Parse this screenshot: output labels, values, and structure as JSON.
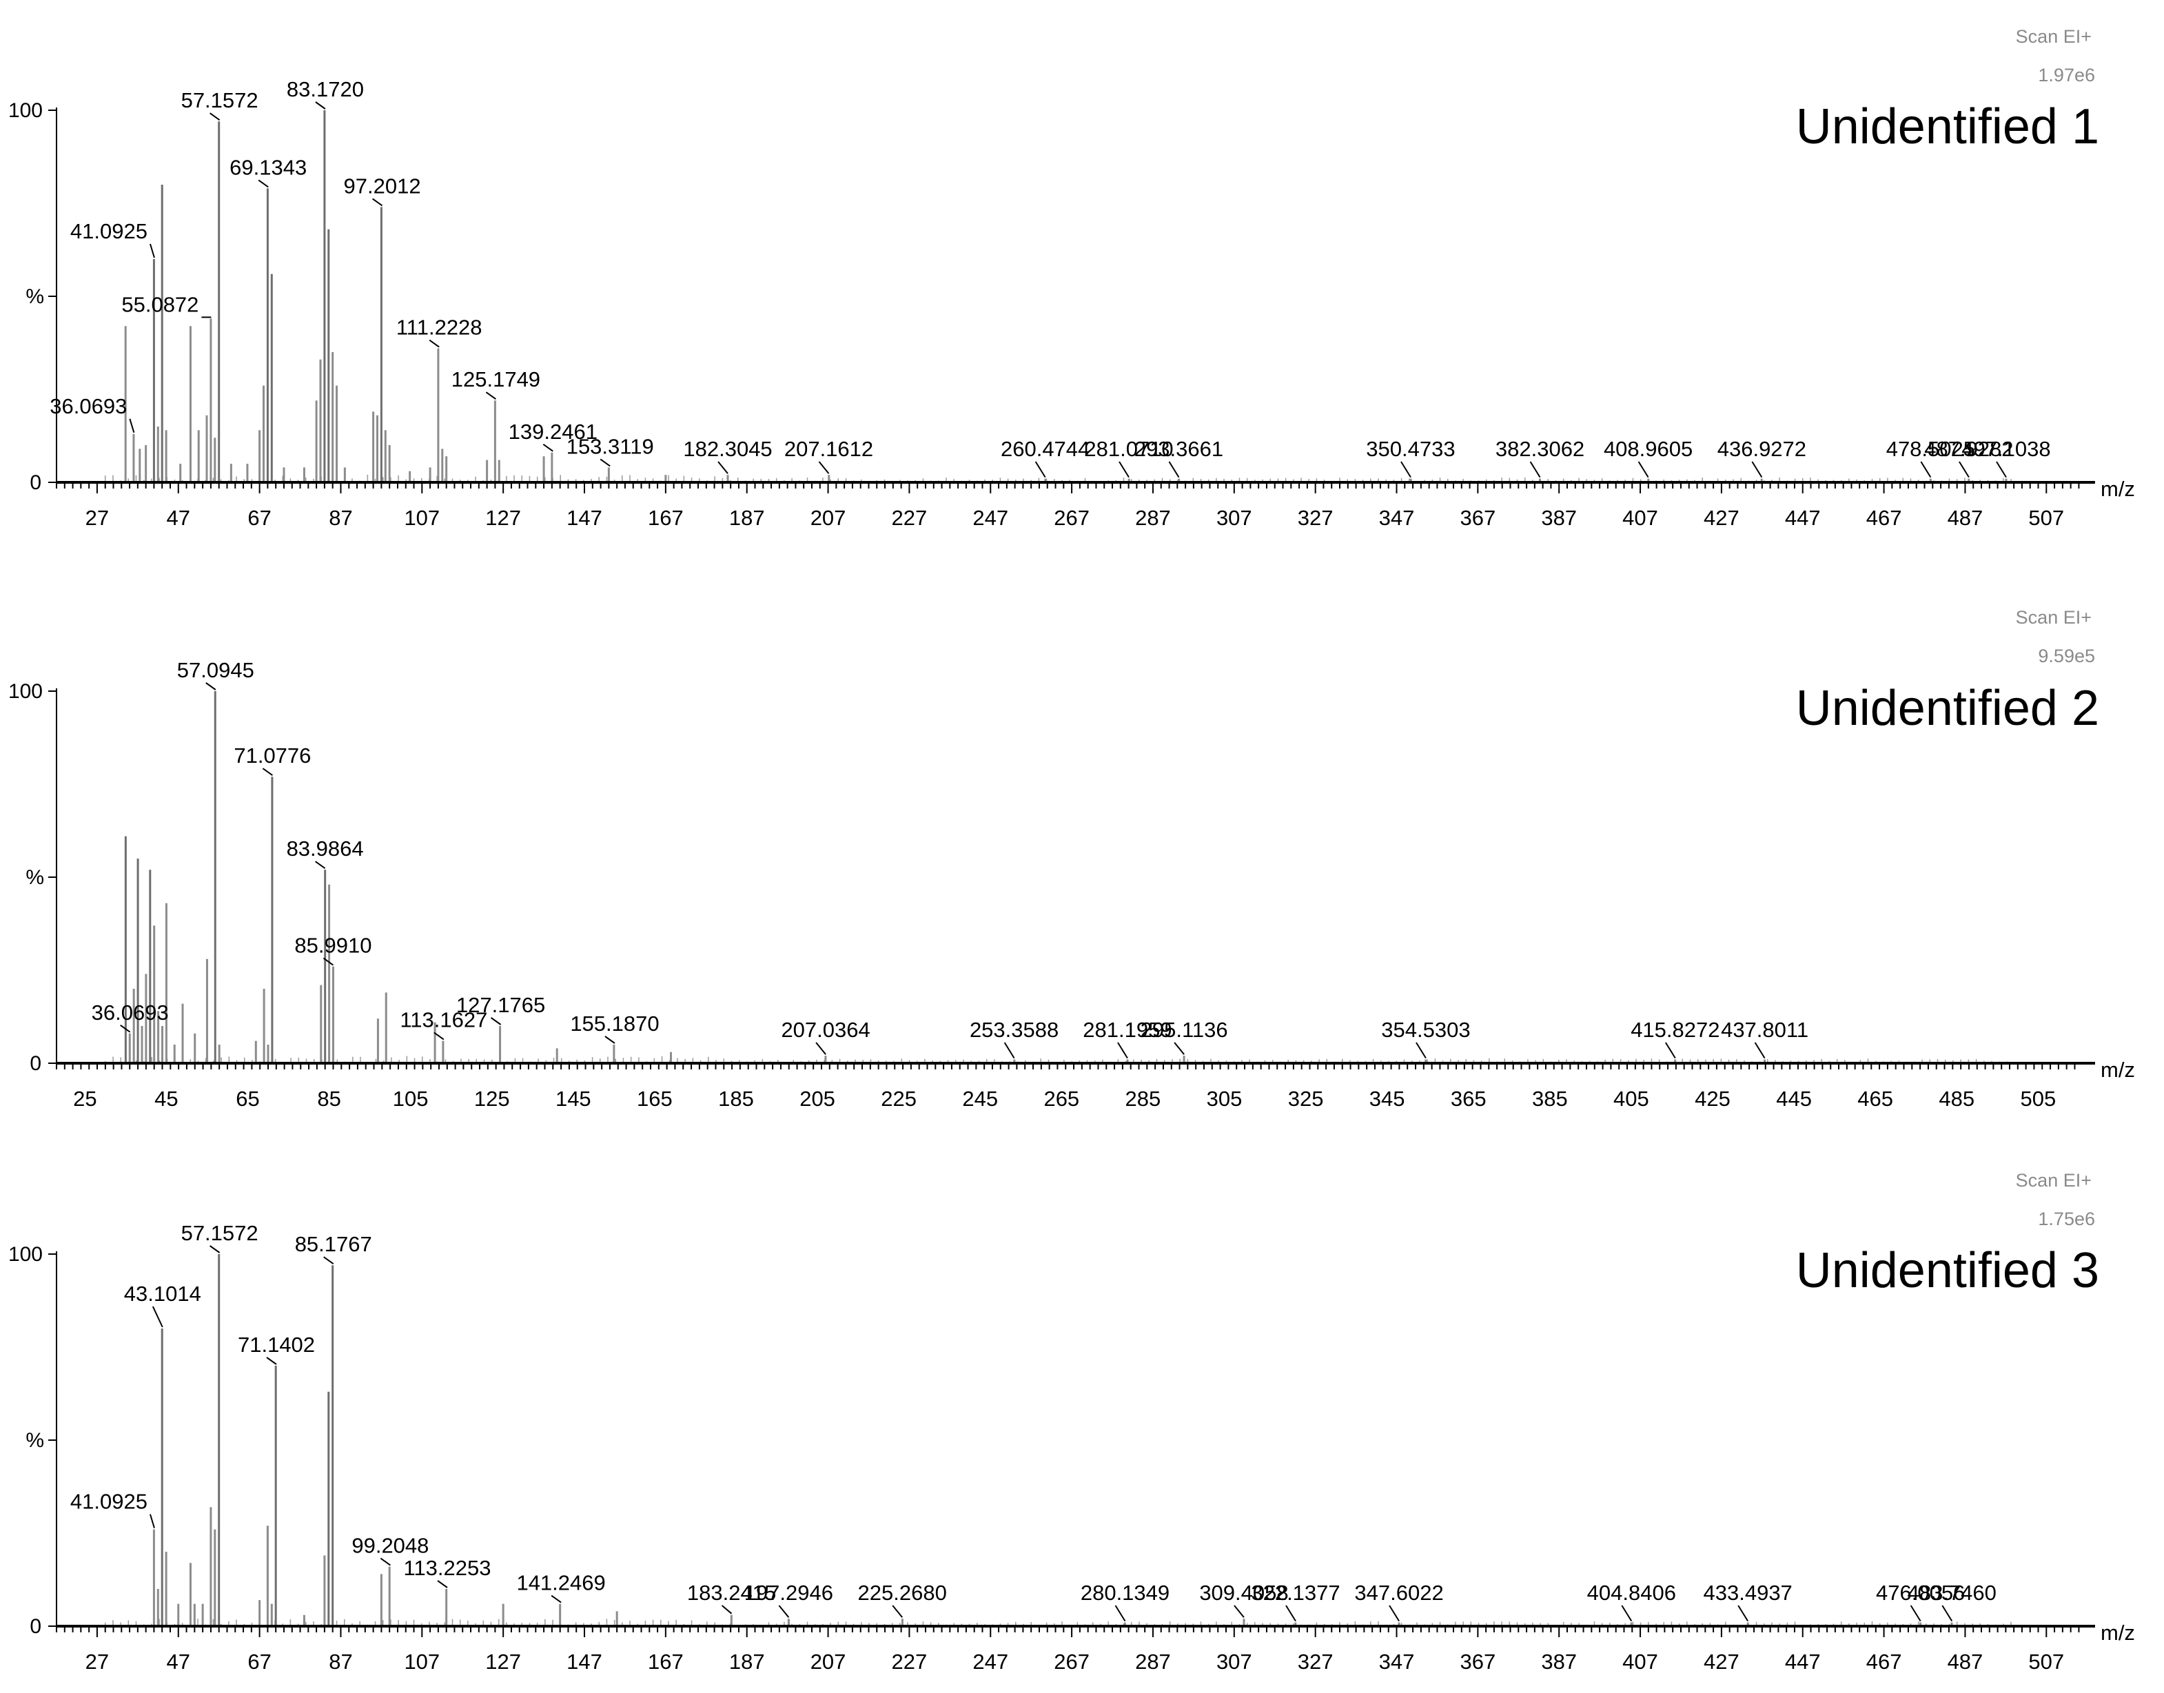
{
  "chart_data": [
    {
      "type": "bar",
      "title": "Unidentified 1",
      "scan_mode": "Scan EI+",
      "intensity": "1.97e6",
      "xlabel": "m/z",
      "ylabel": "%",
      "y_tick_labels": [
        "100",
        "%",
        "0"
      ],
      "ylim": [
        0,
        100
      ],
      "xlim": [
        17,
        519
      ],
      "x_ticks": [
        27,
        47,
        67,
        87,
        107,
        127,
        147,
        167,
        187,
        207,
        227,
        247,
        267,
        287,
        307,
        327,
        347,
        367,
        387,
        407,
        427,
        447,
        467,
        487,
        507
      ],
      "peaks": [
        {
          "mz": 34,
          "value": 42
        },
        {
          "mz": 36,
          "value": 13
        },
        {
          "mz": 37.5,
          "value": 9
        },
        {
          "mz": 39,
          "value": 10
        },
        {
          "mz": 41,
          "value": 60
        },
        {
          "mz": 42,
          "value": 15
        },
        {
          "mz": 43,
          "value": 80
        },
        {
          "mz": 44,
          "value": 14
        },
        {
          "mz": 47.5,
          "value": 5
        },
        {
          "mz": 50,
          "value": 42
        },
        {
          "mz": 52,
          "value": 14
        },
        {
          "mz": 54,
          "value": 18
        },
        {
          "mz": 55,
          "value": 44
        },
        {
          "mz": 56,
          "value": 12
        },
        {
          "mz": 57,
          "value": 97
        },
        {
          "mz": 60,
          "value": 5
        },
        {
          "mz": 64,
          "value": 5
        },
        {
          "mz": 67,
          "value": 14
        },
        {
          "mz": 68,
          "value": 26
        },
        {
          "mz": 69,
          "value": 79
        },
        {
          "mz": 70,
          "value": 56
        },
        {
          "mz": 73,
          "value": 4
        },
        {
          "mz": 78,
          "value": 4
        },
        {
          "mz": 81,
          "value": 22
        },
        {
          "mz": 82,
          "value": 33
        },
        {
          "mz": 83,
          "value": 100
        },
        {
          "mz": 84,
          "value": 68
        },
        {
          "mz": 85,
          "value": 35
        },
        {
          "mz": 86,
          "value": 26
        },
        {
          "mz": 88,
          "value": 4
        },
        {
          "mz": 95,
          "value": 19
        },
        {
          "mz": 96,
          "value": 18
        },
        {
          "mz": 97,
          "value": 74
        },
        {
          "mz": 98,
          "value": 14
        },
        {
          "mz": 99,
          "value": 10
        },
        {
          "mz": 104,
          "value": 3
        },
        {
          "mz": 109,
          "value": 4
        },
        {
          "mz": 111,
          "value": 36
        },
        {
          "mz": 112,
          "value": 9
        },
        {
          "mz": 113,
          "value": 7
        },
        {
          "mz": 123,
          "value": 6
        },
        {
          "mz": 125,
          "value": 22
        },
        {
          "mz": 126,
          "value": 6
        },
        {
          "mz": 137,
          "value": 7
        },
        {
          "mz": 139,
          "value": 8
        },
        {
          "mz": 153,
          "value": 4
        },
        {
          "mz": 167,
          "value": 2
        },
        {
          "mz": 182.3,
          "value": 2
        },
        {
          "mz": 207.2,
          "value": 2
        },
        {
          "mz": 260.5,
          "value": 1
        },
        {
          "mz": 281.1,
          "value": 1
        },
        {
          "mz": 293.4,
          "value": 1
        },
        {
          "mz": 350.5,
          "value": 1
        },
        {
          "mz": 382.3,
          "value": 1
        },
        {
          "mz": 409,
          "value": 1
        },
        {
          "mz": 436.9,
          "value": 1
        },
        {
          "mz": 478.5,
          "value": 1
        },
        {
          "mz": 487.9,
          "value": 1
        },
        {
          "mz": 497.1,
          "value": 1
        }
      ],
      "annotations": [
        {
          "label": "36.0693",
          "mz": 36.0693
        },
        {
          "label": "41.0925",
          "mz": 41.0925
        },
        {
          "label": "55.0872",
          "mz": 55.0872
        },
        {
          "label": "57.1572",
          "mz": 57.1572
        },
        {
          "label": "69.1343",
          "mz": 69.1343
        },
        {
          "label": "83.1720",
          "mz": 83.172
        },
        {
          "label": "97.2012",
          "mz": 97.2012
        },
        {
          "label": "111.2228",
          "mz": 111.2228
        },
        {
          "label": "125.1749",
          "mz": 125.1749
        },
        {
          "label": "139.2461",
          "mz": 139.2461
        },
        {
          "label": "153.3119",
          "mz": 153.3119
        },
        {
          "label": "182.3045",
          "mz": 182.3045
        },
        {
          "label": "207.1612",
          "mz": 207.1612
        },
        {
          "label": "260.4744",
          "mz": 260.4744
        },
        {
          "label": "281.0710",
          "mz": 281.071
        },
        {
          "label": "293.3661",
          "mz": 293.3661
        },
        {
          "label": "350.4733",
          "mz": 350.4733
        },
        {
          "label": "382.3062",
          "mz": 382.3062
        },
        {
          "label": "408.9605",
          "mz": 408.9605
        },
        {
          "label": "436.9272",
          "mz": 436.9272
        },
        {
          "label": "478.5025",
          "mz": 478.5025
        },
        {
          "label": "487.9282",
          "mz": 487.9282
        },
        {
          "label": "497.1038",
          "mz": 497.1038
        }
      ]
    },
    {
      "type": "bar",
      "title": "Unidentified 2",
      "scan_mode": "Scan EI+",
      "intensity": "9.59e5",
      "xlabel": "m/z",
      "ylabel": "%",
      "y_tick_labels": [
        "100",
        "%",
        "0"
      ],
      "ylim": [
        0,
        100
      ],
      "xlim": [
        18,
        519
      ],
      "x_ticks": [
        25,
        45,
        65,
        85,
        105,
        125,
        145,
        165,
        185,
        205,
        225,
        245,
        265,
        285,
        305,
        325,
        345,
        365,
        385,
        405,
        425,
        445,
        465,
        485,
        505
      ],
      "peaks": [
        {
          "mz": 35,
          "value": 61
        },
        {
          "mz": 36,
          "value": 8
        },
        {
          "mz": 37,
          "value": 20
        },
        {
          "mz": 38,
          "value": 55
        },
        {
          "mz": 39,
          "value": 10
        },
        {
          "mz": 40,
          "value": 24
        },
        {
          "mz": 41,
          "value": 52
        },
        {
          "mz": 42,
          "value": 37
        },
        {
          "mz": 43,
          "value": 14
        },
        {
          "mz": 44,
          "value": 10
        },
        {
          "mz": 45,
          "value": 43
        },
        {
          "mz": 47,
          "value": 5
        },
        {
          "mz": 49,
          "value": 16
        },
        {
          "mz": 52,
          "value": 8
        },
        {
          "mz": 55,
          "value": 28
        },
        {
          "mz": 57,
          "value": 100
        },
        {
          "mz": 58,
          "value": 5
        },
        {
          "mz": 67,
          "value": 6
        },
        {
          "mz": 69,
          "value": 20
        },
        {
          "mz": 70,
          "value": 5
        },
        {
          "mz": 71,
          "value": 77
        },
        {
          "mz": 83,
          "value": 21
        },
        {
          "mz": 84,
          "value": 52
        },
        {
          "mz": 85,
          "value": 48
        },
        {
          "mz": 86,
          "value": 26
        },
        {
          "mz": 97,
          "value": 12
        },
        {
          "mz": 99,
          "value": 19
        },
        {
          "mz": 111,
          "value": 11
        },
        {
          "mz": 113,
          "value": 6
        },
        {
          "mz": 127,
          "value": 10
        },
        {
          "mz": 141,
          "value": 4
        },
        {
          "mz": 155,
          "value": 5
        },
        {
          "mz": 169,
          "value": 3
        },
        {
          "mz": 207,
          "value": 2
        },
        {
          "mz": 253.4,
          "value": 1
        },
        {
          "mz": 281.2,
          "value": 1
        },
        {
          "mz": 295.1,
          "value": 2
        },
        {
          "mz": 354.5,
          "value": 1
        },
        {
          "mz": 415.8,
          "value": 1
        },
        {
          "mz": 437.8,
          "value": 1
        }
      ],
      "annotations": [
        {
          "label": "36.0693",
          "mz": 36.0693
        },
        {
          "label": "57.0945",
          "mz": 57.0945
        },
        {
          "label": "71.0776",
          "mz": 71.0776
        },
        {
          "label": "83.9864",
          "mz": 83.9864
        },
        {
          "label": "85.9910",
          "mz": 85.991
        },
        {
          "label": "113.1627",
          "mz": 113.1627
        },
        {
          "label": "127.1765",
          "mz": 127.1765
        },
        {
          "label": "155.1870",
          "mz": 155.187
        },
        {
          "label": "207.0364",
          "mz": 207.0364
        },
        {
          "label": "253.3588",
          "mz": 253.3588
        },
        {
          "label": "281.1959",
          "mz": 281.1959
        },
        {
          "label": "295.1136",
          "mz": 295.1136
        },
        {
          "label": "354.5303",
          "mz": 354.5303
        },
        {
          "label": "415.8272",
          "mz": 415.8272
        },
        {
          "label": "437.8011",
          "mz": 437.8011
        }
      ]
    },
    {
      "type": "bar",
      "title": "Unidentified 3",
      "scan_mode": "Scan EI+",
      "intensity": "1.75e6",
      "xlabel": "m/z",
      "ylabel": "%",
      "y_tick_labels": [
        "100",
        "%",
        "0"
      ],
      "ylim": [
        0,
        100
      ],
      "xlim": [
        17,
        519
      ],
      "x_ticks": [
        27,
        47,
        67,
        87,
        107,
        127,
        147,
        167,
        187,
        207,
        227,
        247,
        267,
        287,
        307,
        327,
        347,
        367,
        387,
        407,
        427,
        447,
        467,
        487,
        507
      ],
      "peaks": [
        {
          "mz": 41,
          "value": 26
        },
        {
          "mz": 42,
          "value": 10
        },
        {
          "mz": 43,
          "value": 80
        },
        {
          "mz": 44,
          "value": 20
        },
        {
          "mz": 47,
          "value": 6
        },
        {
          "mz": 50,
          "value": 17
        },
        {
          "mz": 51,
          "value": 6
        },
        {
          "mz": 53,
          "value": 6
        },
        {
          "mz": 55,
          "value": 32
        },
        {
          "mz": 56,
          "value": 26
        },
        {
          "mz": 57,
          "value": 100
        },
        {
          "mz": 67,
          "value": 7
        },
        {
          "mz": 69,
          "value": 27
        },
        {
          "mz": 70,
          "value": 6
        },
        {
          "mz": 71,
          "value": 70
        },
        {
          "mz": 78,
          "value": 3
        },
        {
          "mz": 83,
          "value": 19
        },
        {
          "mz": 84,
          "value": 63
        },
        {
          "mz": 85,
          "value": 97
        },
        {
          "mz": 97,
          "value": 14
        },
        {
          "mz": 99,
          "value": 16
        },
        {
          "mz": 113,
          "value": 10
        },
        {
          "mz": 127,
          "value": 6
        },
        {
          "mz": 141,
          "value": 6
        },
        {
          "mz": 155,
          "value": 4
        },
        {
          "mz": 183.2,
          "value": 3
        },
        {
          "mz": 197.3,
          "value": 2
        },
        {
          "mz": 225.3,
          "value": 2
        },
        {
          "mz": 280.1,
          "value": 1
        },
        {
          "mz": 309.4,
          "value": 2
        },
        {
          "mz": 322.1,
          "value": 1
        },
        {
          "mz": 347.6,
          "value": 1
        },
        {
          "mz": 404.8,
          "value": 1
        },
        {
          "mz": 433.5,
          "value": 1
        },
        {
          "mz": 476,
          "value": 1
        },
        {
          "mz": 483.7,
          "value": 1
        }
      ],
      "annotations": [
        {
          "label": "41.0925",
          "mz": 41.0925
        },
        {
          "label": "43.1014",
          "mz": 43.1014
        },
        {
          "label": "57.1572",
          "mz": 57.1572
        },
        {
          "label": "71.1402",
          "mz": 71.1402
        },
        {
          "label": "85.1767",
          "mz": 85.1767
        },
        {
          "label": "99.2048",
          "mz": 99.2048
        },
        {
          "label": "113.2253",
          "mz": 113.2253
        },
        {
          "label": "141.2469",
          "mz": 141.2469
        },
        {
          "label": "183.2415",
          "mz": 183.2415
        },
        {
          "label": "197.2946",
          "mz": 197.2946
        },
        {
          "label": "225.2680",
          "mz": 225.268
        },
        {
          "label": "280.1349",
          "mz": 280.1349
        },
        {
          "label": "309.4058",
          "mz": 309.4058
        },
        {
          "label": "322.1377",
          "mz": 322.1377
        },
        {
          "label": "347.6022",
          "mz": 347.6022
        },
        {
          "label": "404.8406",
          "mz": 404.8406
        },
        {
          "label": "433.4937",
          "mz": 433.4937
        },
        {
          "label": "476.0056",
          "mz": 476.0056
        },
        {
          "label": "483.7460",
          "mz": 483.746
        }
      ]
    }
  ]
}
